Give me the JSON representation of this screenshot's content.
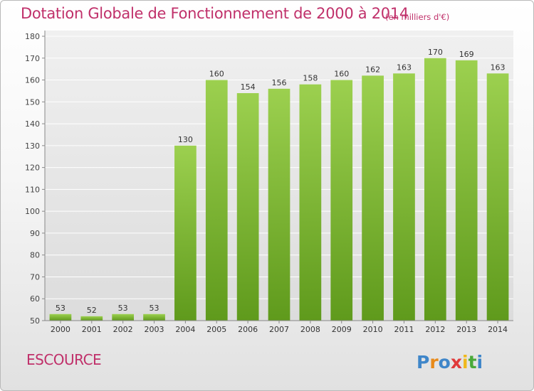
{
  "title": "Dotation Globale de Fonctionnement de 2000 à 2014",
  "subtitle": "(en milliers d'€)",
  "commune": "ESCOURCE",
  "brand": "Proxiti",
  "colors": {
    "title": "#c0306a",
    "bar_top": "#9cd04f",
    "bar_bottom": "#5f9a1c",
    "grid": "#ffffff",
    "axis": "#888888"
  },
  "chart_data": {
    "type": "bar",
    "categories": [
      "2000",
      "2001",
      "2002",
      "2003",
      "2004",
      "2005",
      "2006",
      "2007",
      "2008",
      "2009",
      "2010",
      "2011",
      "2012",
      "2013",
      "2014"
    ],
    "values": [
      53,
      52,
      53,
      53,
      130,
      160,
      154,
      156,
      158,
      160,
      162,
      163,
      170,
      169,
      163
    ],
    "title": "Dotation Globale de Fonctionnement de 2000 à 2014",
    "subtitle": "(en milliers d'€)",
    "ylim": [
      50,
      180
    ],
    "yticks": [
      50,
      60,
      70,
      80,
      90,
      100,
      110,
      120,
      130,
      140,
      150,
      160,
      170,
      180
    ],
    "grid": true,
    "data_labels": true
  }
}
